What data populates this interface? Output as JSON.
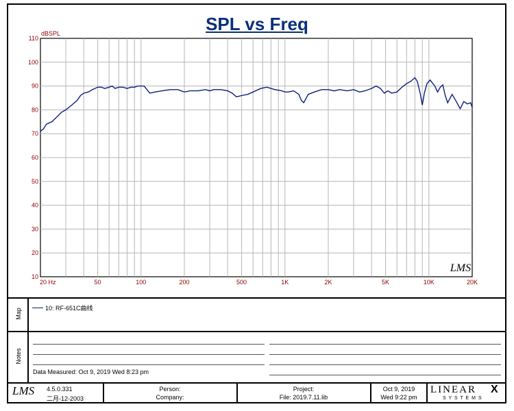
{
  "chart_data": {
    "type": "line",
    "title": "SPL vs Freq",
    "ylabel": "dBSPL",
    "xscale": "log",
    "xlim": [
      20,
      20000
    ],
    "ylim": [
      10,
      110
    ],
    "grid": true,
    "ytick_labels": [
      "10",
      "20",
      "30",
      "40",
      "50",
      "60",
      "70",
      "80",
      "90",
      "100",
      "110"
    ],
    "xtick_labels": [
      {
        "f": 20,
        "label": "20 Hz"
      },
      {
        "f": 50,
        "label": "50"
      },
      {
        "f": 100,
        "label": "100"
      },
      {
        "f": 200,
        "label": "200"
      },
      {
        "f": 500,
        "label": "500"
      },
      {
        "f": 1000,
        "label": "1K"
      },
      {
        "f": 2000,
        "label": "2K"
      },
      {
        "f": 5000,
        "label": "5K"
      },
      {
        "f": 10000,
        "label": "10K"
      },
      {
        "f": 20000,
        "label": "20K"
      }
    ],
    "series": [
      {
        "name": "10: RF-651C曲线",
        "color": "#0a1e7a",
        "points": [
          [
            20,
            71
          ],
          [
            21,
            72
          ],
          [
            22,
            74
          ],
          [
            24,
            75
          ],
          [
            26,
            77
          ],
          [
            28,
            79
          ],
          [
            30,
            80
          ],
          [
            33,
            82
          ],
          [
            36,
            84
          ],
          [
            38,
            86
          ],
          [
            40,
            87
          ],
          [
            43,
            87.5
          ],
          [
            46,
            88.5
          ],
          [
            50,
            89.5
          ],
          [
            53,
            89.5
          ],
          [
            56,
            89
          ],
          [
            60,
            89.5
          ],
          [
            63,
            90
          ],
          [
            66,
            89
          ],
          [
            70,
            89.5
          ],
          [
            75,
            89.5
          ],
          [
            80,
            89
          ],
          [
            85,
            89.5
          ],
          [
            90,
            89.5
          ],
          [
            95,
            90
          ],
          [
            100,
            90
          ],
          [
            105,
            90
          ],
          [
            110,
            88.5
          ],
          [
            115,
            87
          ],
          [
            125,
            87.5
          ],
          [
            140,
            88
          ],
          [
            160,
            88.5
          ],
          [
            180,
            88.5
          ],
          [
            200,
            87.5
          ],
          [
            220,
            88
          ],
          [
            250,
            88
          ],
          [
            280,
            88.5
          ],
          [
            300,
            88
          ],
          [
            320,
            88.5
          ],
          [
            360,
            88.5
          ],
          [
            400,
            88
          ],
          [
            430,
            87
          ],
          [
            460,
            85.5
          ],
          [
            500,
            86
          ],
          [
            550,
            86.5
          ],
          [
            600,
            87.5
          ],
          [
            680,
            89
          ],
          [
            750,
            89.5
          ],
          [
            850,
            88.5
          ],
          [
            950,
            88
          ],
          [
            1000,
            87.5
          ],
          [
            1050,
            87.5
          ],
          [
            1150,
            88
          ],
          [
            1250,
            86.5
          ],
          [
            1300,
            84
          ],
          [
            1350,
            83
          ],
          [
            1450,
            86.5
          ],
          [
            1600,
            87.5
          ],
          [
            1800,
            88.5
          ],
          [
            2000,
            88.5
          ],
          [
            2200,
            88
          ],
          [
            2400,
            88.5
          ],
          [
            2700,
            88
          ],
          [
            3000,
            88.5
          ],
          [
            3300,
            87.5
          ],
          [
            3600,
            88
          ],
          [
            4000,
            89
          ],
          [
            4300,
            90
          ],
          [
            4600,
            89
          ],
          [
            4900,
            87
          ],
          [
            5200,
            88
          ],
          [
            5500,
            87
          ],
          [
            6000,
            87.5
          ],
          [
            6500,
            89.5
          ],
          [
            7000,
            91
          ],
          [
            7500,
            92
          ],
          [
            8000,
            93.5
          ],
          [
            8300,
            92
          ],
          [
            8700,
            87
          ],
          [
            9000,
            82
          ],
          [
            9300,
            87
          ],
          [
            9700,
            91
          ],
          [
            10200,
            92.5
          ],
          [
            11000,
            90
          ],
          [
            11500,
            87.5
          ],
          [
            12000,
            89.5
          ],
          [
            12500,
            90.5
          ],
          [
            13000,
            86
          ],
          [
            13500,
            83
          ],
          [
            14500,
            86.5
          ],
          [
            15500,
            83.5
          ],
          [
            16500,
            80.5
          ],
          [
            17500,
            83.5
          ],
          [
            18500,
            82.5
          ],
          [
            19500,
            83
          ],
          [
            20000,
            81
          ]
        ]
      }
    ]
  },
  "watermark": "LMS",
  "map": {
    "side_label": "Map",
    "legend_label": "10: RF-651C曲线"
  },
  "notes": {
    "side_label": "Notes",
    "data_measured_label": "Data Measured:",
    "data_measured_value": "Oct  9, 2019   Wed  8:23 pm"
  },
  "footer": {
    "logo": "LMS",
    "version": "4.5.0.331",
    "build_date": "二月-12-2003",
    "person_label": "Person:",
    "company_label": "Company:",
    "project_label": "Project:",
    "file_label": "File: 2019.7.11.lib",
    "date": "Oct  9, 2019",
    "day_time": "Wed  9:22 pm",
    "brand_top": "LINEAR",
    "brand_x": "X",
    "brand_sub": "S Y S T E M S"
  }
}
